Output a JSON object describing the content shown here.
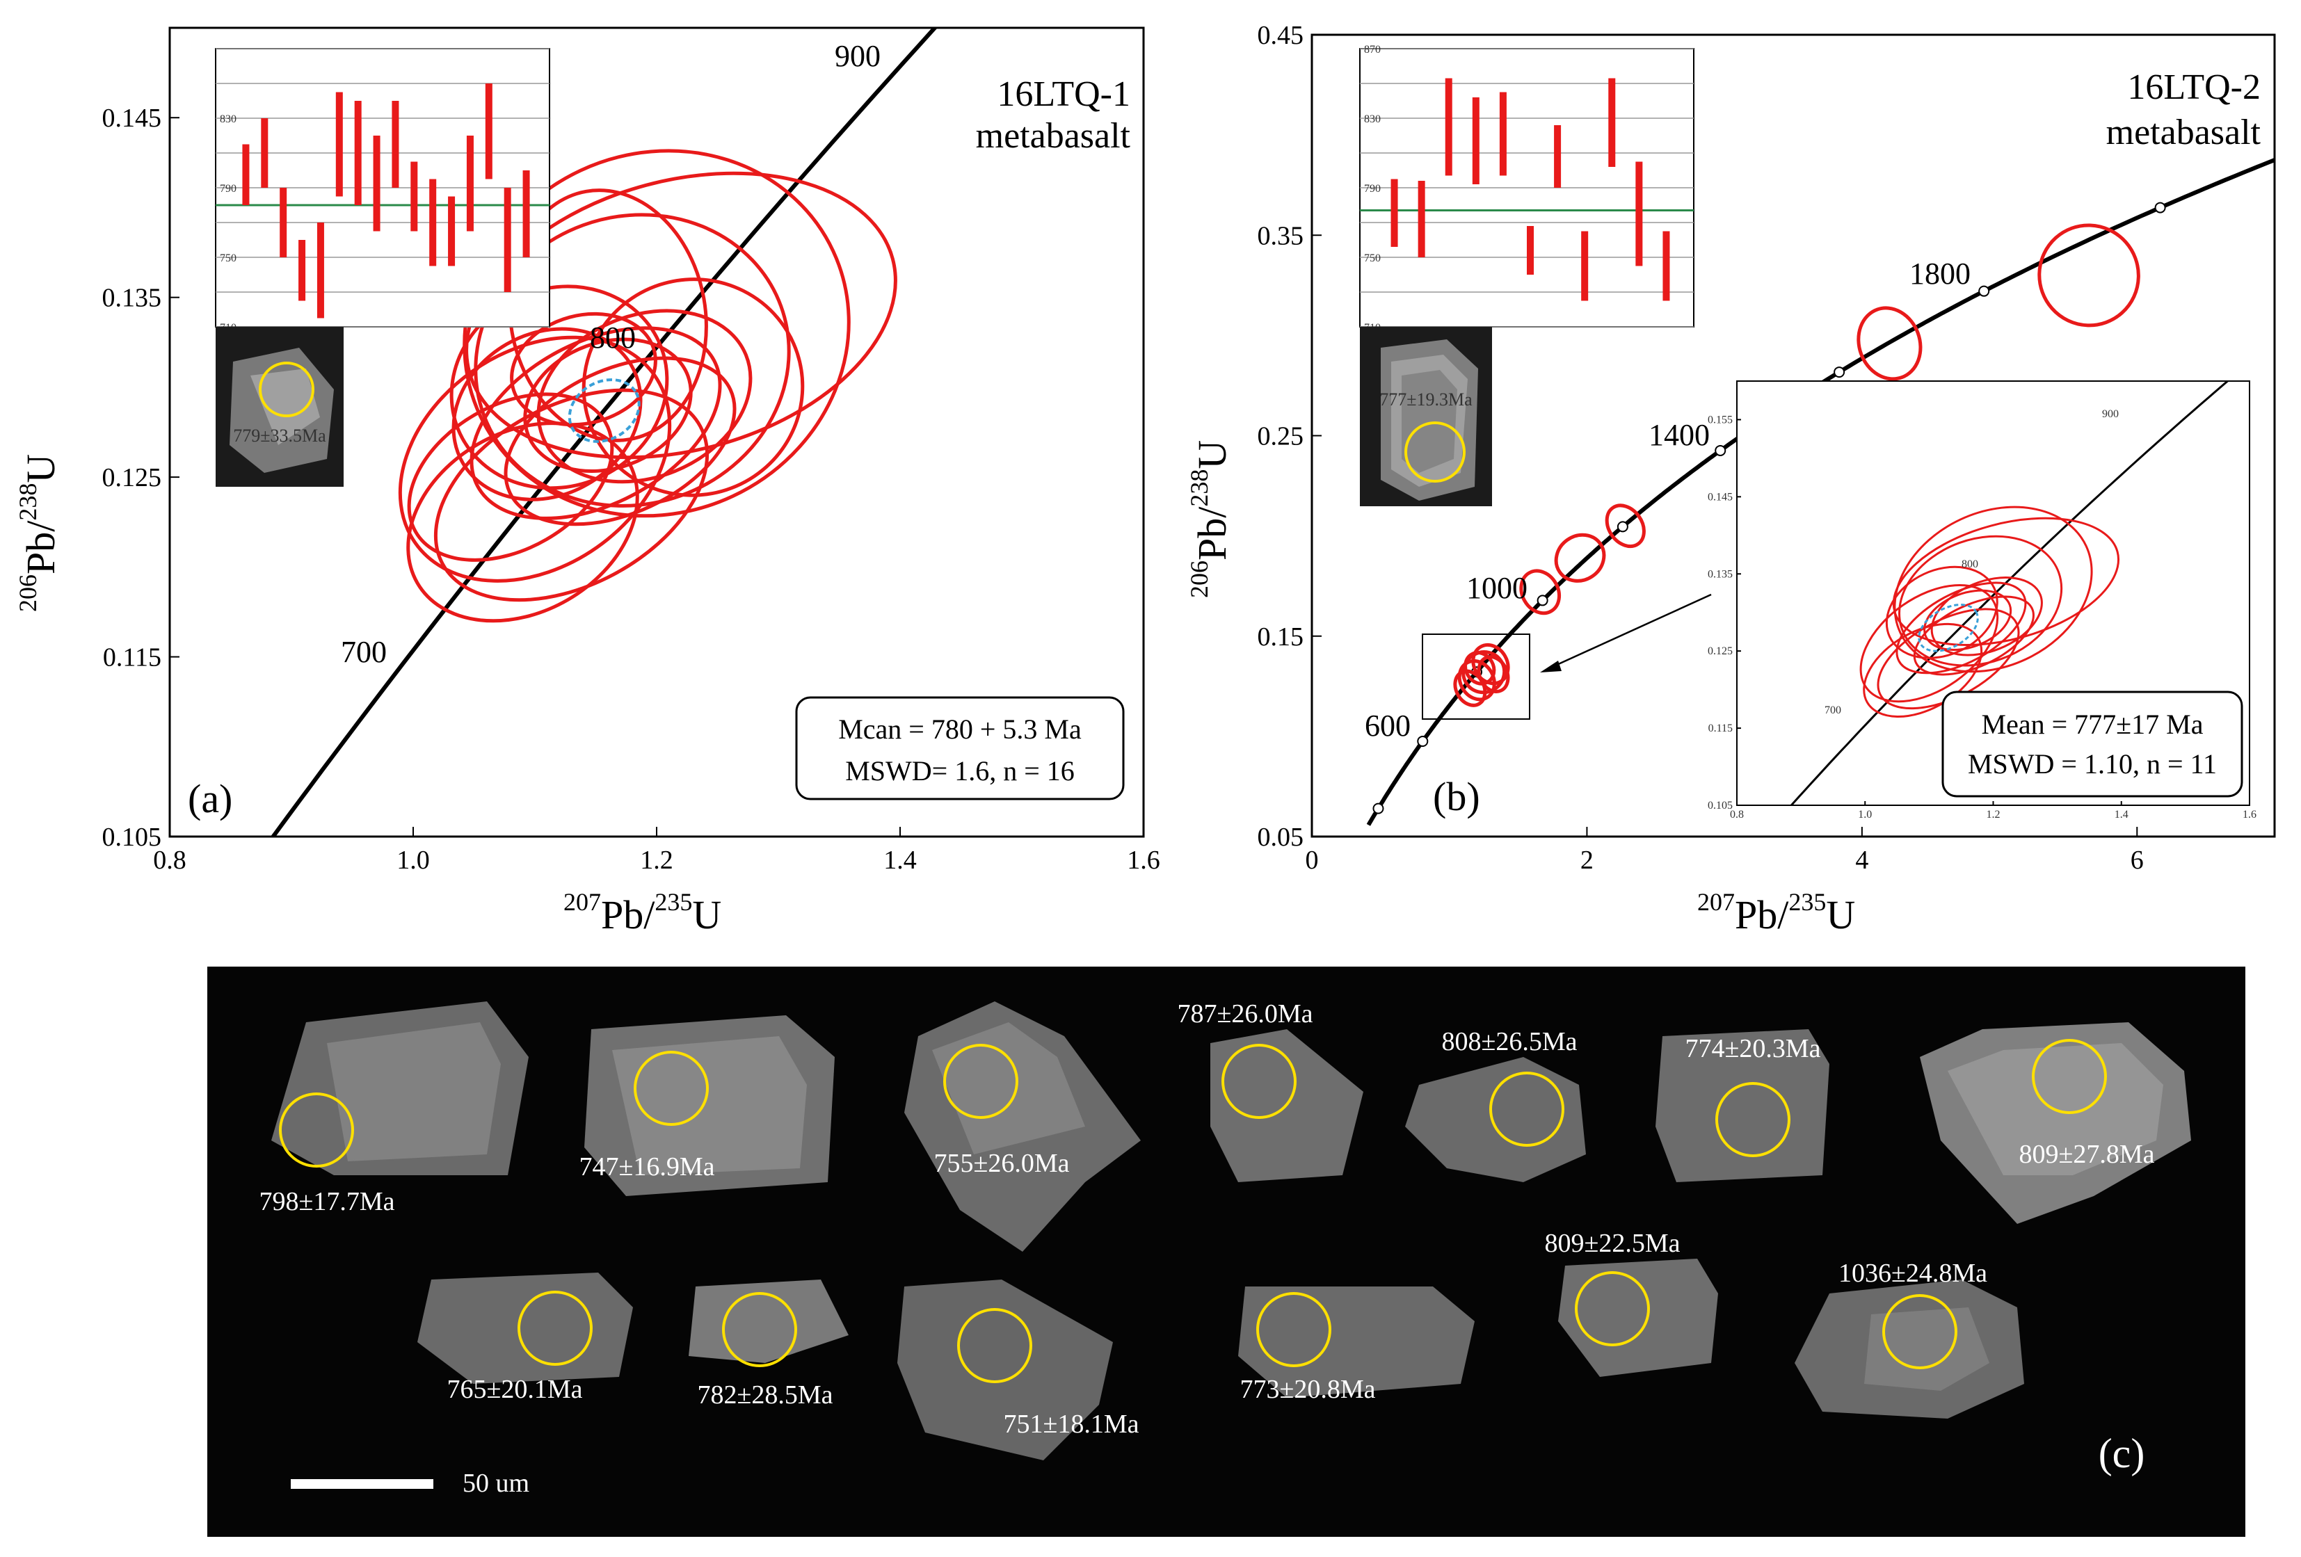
{
  "chart_data": [
    {
      "panel": "(a)",
      "type": "scatter",
      "subtype": "concordia",
      "sample": [
        "16LTQ-1",
        "metabasalt"
      ],
      "xlabel": {
        "main": "Pb/",
        "sup1": "207",
        "sup2": "235",
        "tail": "U"
      },
      "ylabel": {
        "main": "Pb/",
        "sup1": "206",
        "sup2": "238",
        "tail": "U"
      },
      "xlim": [
        0.8,
        1.6
      ],
      "ylim": [
        0.105,
        0.15
      ],
      "xticks": [
        "0.8",
        "1.0",
        "1.2",
        "1.4",
        "1.6"
      ],
      "yticks": [
        "0.105",
        "0.115",
        "0.125",
        "0.135",
        "0.145"
      ],
      "concordia_labels": [
        "700",
        "800",
        "900"
      ],
      "stats": [
        "Mcan = 780 + 5.3 Ma",
        "MSWD= 1.6, n = 16"
      ],
      "mean": {
        "age_ma": 780,
        "x": 1.157,
        "y": 0.1287
      },
      "ellipses": [
        {
          "cx": 1.12,
          "cy": 0.13,
          "rx": 0.09,
          "ry": 0.0055,
          "angle": 25
        },
        {
          "cx": 1.15,
          "cy": 0.128,
          "rx": 0.11,
          "ry": 0.0045,
          "angle": 28
        },
        {
          "cx": 1.18,
          "cy": 0.1315,
          "rx": 0.13,
          "ry": 0.008,
          "angle": 20
        },
        {
          "cx": 1.2,
          "cy": 0.133,
          "rx": 0.16,
          "ry": 0.01,
          "angle": 25
        },
        {
          "cx": 1.22,
          "cy": 0.134,
          "rx": 0.18,
          "ry": 0.0075,
          "angle": 15
        },
        {
          "cx": 1.1,
          "cy": 0.126,
          "rx": 0.12,
          "ry": 0.006,
          "angle": 35
        },
        {
          "cx": 1.09,
          "cy": 0.1225,
          "rx": 0.1,
          "ry": 0.005,
          "angle": 30
        },
        {
          "cx": 1.13,
          "cy": 0.124,
          "rx": 0.12,
          "ry": 0.005,
          "angle": 28
        },
        {
          "cx": 1.17,
          "cy": 0.127,
          "rx": 0.1,
          "ry": 0.004,
          "angle": 25
        },
        {
          "cx": 1.16,
          "cy": 0.129,
          "rx": 0.07,
          "ry": 0.0035,
          "angle": 20
        },
        {
          "cx": 1.19,
          "cy": 0.1295,
          "rx": 0.09,
          "ry": 0.0045,
          "angle": 22
        },
        {
          "cx": 1.14,
          "cy": 0.131,
          "rx": 0.06,
          "ry": 0.003,
          "angle": 15
        },
        {
          "cx": 1.16,
          "cy": 0.134,
          "rx": 0.08,
          "ry": 0.007,
          "angle": 10
        },
        {
          "cx": 1.11,
          "cy": 0.1285,
          "rx": 0.08,
          "ry": 0.0045,
          "angle": 30
        },
        {
          "cx": 1.23,
          "cy": 0.13,
          "rx": 0.09,
          "ry": 0.006,
          "angle": 18
        },
        {
          "cx": 1.08,
          "cy": 0.125,
          "rx": 0.09,
          "ry": 0.004,
          "angle": 30
        }
      ],
      "inset": {
        "ylim": [
          710,
          870
        ],
        "yticks": [
          "830",
          "790",
          "750",
          "710"
        ],
        "mean": 780,
        "bars": [
          {
            "lo": 780,
            "hi": 815
          },
          {
            "lo": 790,
            "hi": 830
          },
          {
            "lo": 750,
            "hi": 790
          },
          {
            "lo": 725,
            "hi": 760
          },
          {
            "lo": 715,
            "hi": 770
          },
          {
            "lo": 785,
            "hi": 845
          },
          {
            "lo": 780,
            "hi": 840
          },
          {
            "lo": 765,
            "hi": 820
          },
          {
            "lo": 790,
            "hi": 840
          },
          {
            "lo": 765,
            "hi": 805
          },
          {
            "lo": 745,
            "hi": 795
          },
          {
            "lo": 745,
            "hi": 785
          },
          {
            "lo": 765,
            "hi": 820
          },
          {
            "lo": 795,
            "hi": 850
          },
          {
            "lo": 730,
            "hi": 790
          },
          {
            "lo": 750,
            "hi": 800
          }
        ],
        "grain_label": "779±33.5Ma"
      }
    },
    {
      "panel": "(b)",
      "type": "scatter",
      "subtype": "concordia",
      "sample": [
        "16LTQ-2",
        "metabasalt"
      ],
      "xlabel": {
        "main": "Pb/",
        "sup1": "207",
        "sup2": "235",
        "tail": "U"
      },
      "ylabel": {
        "main": "Pb/",
        "sup1": "206",
        "sup2": "238",
        "tail": "U"
      },
      "xlim": [
        0,
        7
      ],
      "ylim": [
        0.05,
        0.45
      ],
      "xticks": [
        "0",
        "2",
        "4",
        "6"
      ],
      "yticks": [
        "0.05",
        "0.15",
        "0.25",
        "0.35",
        "0.45"
      ],
      "concordia_labels": [
        "600",
        "1000",
        "1400",
        "1800"
      ],
      "stats": [
        "Mean = 777±17 Ma",
        "MSWD = 1.10, n = 11"
      ],
      "mean": {
        "age_ma": 777
      },
      "ellipses": [
        {
          "cx": 1.2,
          "cy": 0.128,
          "rx": 0.12,
          "ry": 0.01,
          "angle": 30
        },
        {
          "cx": 1.25,
          "cy": 0.132,
          "rx": 0.15,
          "ry": 0.01,
          "angle": 30
        },
        {
          "cx": 1.3,
          "cy": 0.136,
          "rx": 0.12,
          "ry": 0.01,
          "angle": 30
        },
        {
          "cx": 1.15,
          "cy": 0.124,
          "rx": 0.1,
          "ry": 0.009,
          "angle": 30
        },
        {
          "cx": 1.32,
          "cy": 0.131,
          "rx": 0.1,
          "ry": 0.009,
          "angle": 25
        },
        {
          "cx": 1.22,
          "cy": 0.134,
          "rx": 0.1,
          "ry": 0.008,
          "angle": 30
        },
        {
          "cx": 1.66,
          "cy": 0.172,
          "rx": 0.13,
          "ry": 0.011,
          "angle": 30
        },
        {
          "cx": 1.95,
          "cy": 0.189,
          "rx": 0.18,
          "ry": 0.011,
          "angle": 35
        },
        {
          "cx": 2.28,
          "cy": 0.205,
          "rx": 0.12,
          "ry": 0.011,
          "angle": 35
        },
        {
          "cx": 4.2,
          "cy": 0.296,
          "rx": 0.22,
          "ry": 0.018,
          "angle": 20
        },
        {
          "cx": 5.65,
          "cy": 0.33,
          "rx": 0.36,
          "ry": 0.025,
          "angle": 20
        }
      ],
      "inset_zoom": {
        "xticks": [
          "0.8",
          "1.0",
          "1.2",
          "1.4",
          "1.6"
        ],
        "yticks": [
          "0.155",
          "0.145",
          "0.135",
          "0.125",
          "0.115",
          "0.105"
        ],
        "concordia_labels": [
          "700",
          "800",
          "900"
        ]
      },
      "inset": {
        "ylim": [
          710,
          870
        ],
        "yticks": [
          "870",
          "830",
          "790",
          "750",
          "710"
        ],
        "mean": 777,
        "bars": [
          {
            "lo": 756,
            "hi": 795
          },
          {
            "lo": 750,
            "hi": 794
          },
          {
            "lo": 797,
            "hi": 853
          },
          {
            "lo": 792,
            "hi": 842
          },
          {
            "lo": 797,
            "hi": 845
          },
          {
            "lo": 740,
            "hi": 768
          },
          {
            "lo": 790,
            "hi": 826
          },
          {
            "lo": 725,
            "hi": 765
          },
          {
            "lo": 802,
            "hi": 853
          },
          {
            "lo": 745,
            "hi": 805
          },
          {
            "lo": 725,
            "hi": 765
          }
        ],
        "grain_label": "777±19.3Ma"
      }
    }
  ],
  "panel_c": {
    "label": "(c)",
    "scale_label": "50 um",
    "grains": [
      "798±17.7Ma",
      "747±16.9Ma",
      "755±26.0Ma",
      "787±26.0Ma",
      "808±26.5Ma",
      "774±20.3Ma",
      "809±27.8Ma",
      "765±20.1Ma",
      "782±28.5Ma",
      "751±18.1Ma",
      "773±20.8Ma",
      "809±22.5Ma",
      "1036±24.8Ma"
    ]
  },
  "colors": {
    "ellipse": "#e81a1a",
    "mean_ellipse": "#3aa0d8",
    "inset_mean_line": "#2a8a4a",
    "grain_circle": "#ffe000",
    "concordia": "#000000"
  }
}
